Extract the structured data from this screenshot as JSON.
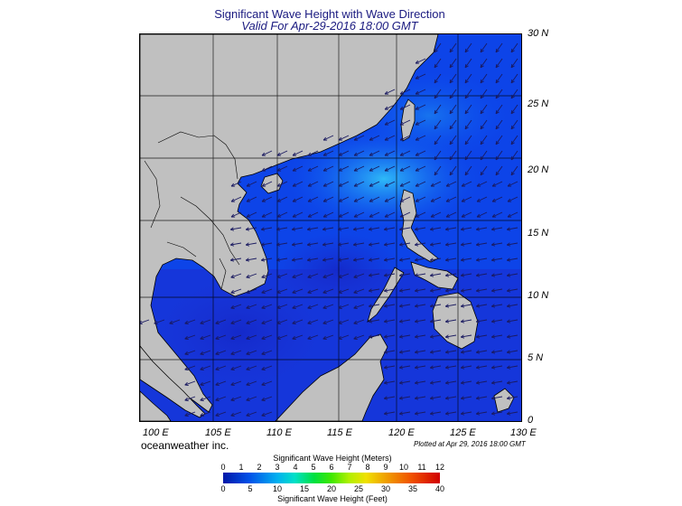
{
  "title": "Significant Wave Height with Wave Direction",
  "subtitle": "Valid For Apr-29-2016 18:00 GMT",
  "lat_labels": [
    "30 N",
    "25 N",
    "20 N",
    "15 N",
    "10 N",
    "5 N",
    "0"
  ],
  "lon_labels": [
    "100 E",
    "105 E",
    "110 E",
    "115 E",
    "120 E",
    "125 E",
    "130 E"
  ],
  "credit": "oceanweather inc.",
  "plotted": "Plotted at Apr 29, 2016 18:00 GMT",
  "colorbar": {
    "meters_title": "Significant Wave Height (Meters)",
    "feet_title": "Significant Wave Height (Feet)",
    "meters_ticks": [
      "0",
      "1",
      "2",
      "3",
      "4",
      "5",
      "6",
      "7",
      "8",
      "9",
      "10",
      "11",
      "12"
    ],
    "feet_ticks": [
      "0",
      "5",
      "10",
      "15",
      "20",
      "25",
      "30",
      "35",
      "40"
    ]
  },
  "colors": {
    "land": "#c0c0c0",
    "sea_low": "#1a2fd0",
    "sea_mid": "#0a4cf0",
    "sea_high": "#2aa0f0",
    "arrow": "#1a1a60"
  }
}
